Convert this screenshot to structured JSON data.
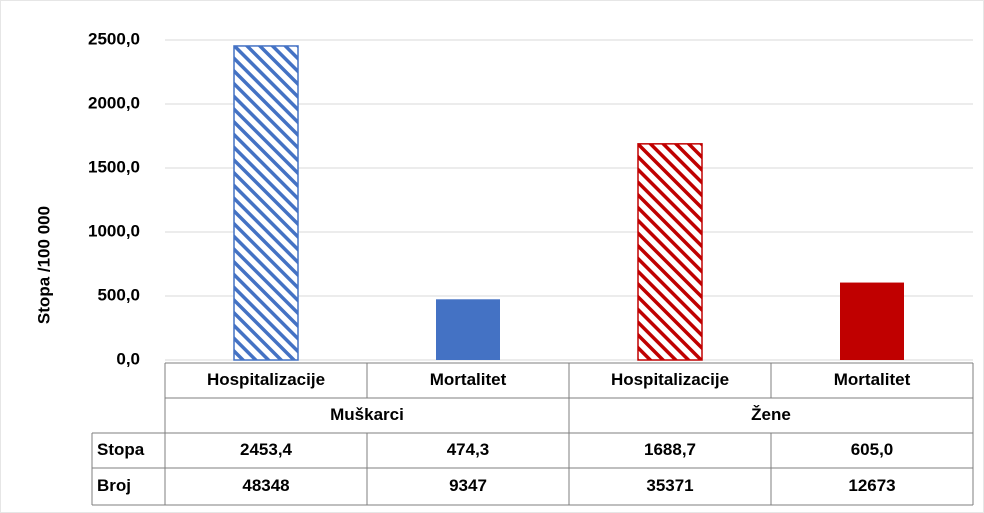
{
  "chart_data": {
    "type": "bar",
    "ylabel": "Stopa /100 000",
    "categories": [
      "Hospitalizacije",
      "Mortalitet",
      "Hospitalizacije",
      "Mortalitet"
    ],
    "groups": [
      "Muškarci",
      "Žene"
    ],
    "values": [
      2453.4,
      474.3,
      1688.7,
      605.0
    ],
    "value_labels": [
      "2453,4",
      "474,3",
      "1688,7",
      "605,0"
    ],
    "colors": [
      "#4472c4",
      "#4472c4",
      "#c00000",
      "#c00000"
    ],
    "hatched": [
      true,
      false,
      true,
      false
    ],
    "ylim": [
      0,
      2500
    ],
    "yticks": [
      {
        "value": 0,
        "label": "0,0"
      },
      {
        "value": 500,
        "label": "500,0"
      },
      {
        "value": 1000,
        "label": "1000,0"
      },
      {
        "value": 1500,
        "label": "1500,0"
      },
      {
        "value": 2000,
        "label": "2000,0"
      },
      {
        "value": 2500,
        "label": "2500,0"
      }
    ],
    "grid": true,
    "table_rows": [
      "Stopa",
      "Broj"
    ],
    "counts": [
      48348,
      9347,
      35371,
      12673
    ]
  }
}
